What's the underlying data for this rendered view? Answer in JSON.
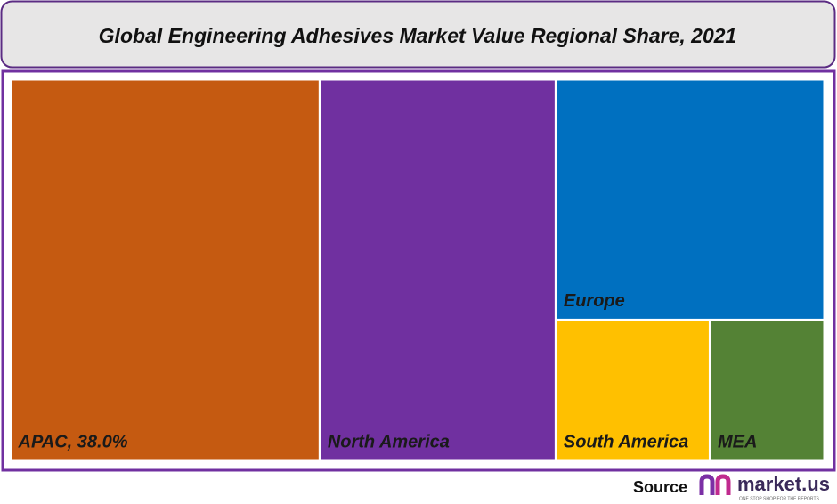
{
  "chart_data": {
    "type": "treemap",
    "title": "Global Engineering Adhesives Market Value Regional Share, 2021",
    "categories": [
      "APAC",
      "North America",
      "Europe",
      "South America",
      "MEA"
    ],
    "values": [
      38.0,
      29.0,
      20.8,
      7.0,
      5.2
    ],
    "value_labels": [
      "APAC, 38.0%",
      null,
      null,
      null,
      null
    ],
    "colors": [
      "#c55a11",
      "#7030a0",
      "#0070c0",
      "#ffc000",
      "#548235"
    ]
  },
  "footer": {
    "source": "Source",
    "logo": "market.us",
    "tagline": "ONE STOP SHOP FOR THE REPORTS"
  }
}
